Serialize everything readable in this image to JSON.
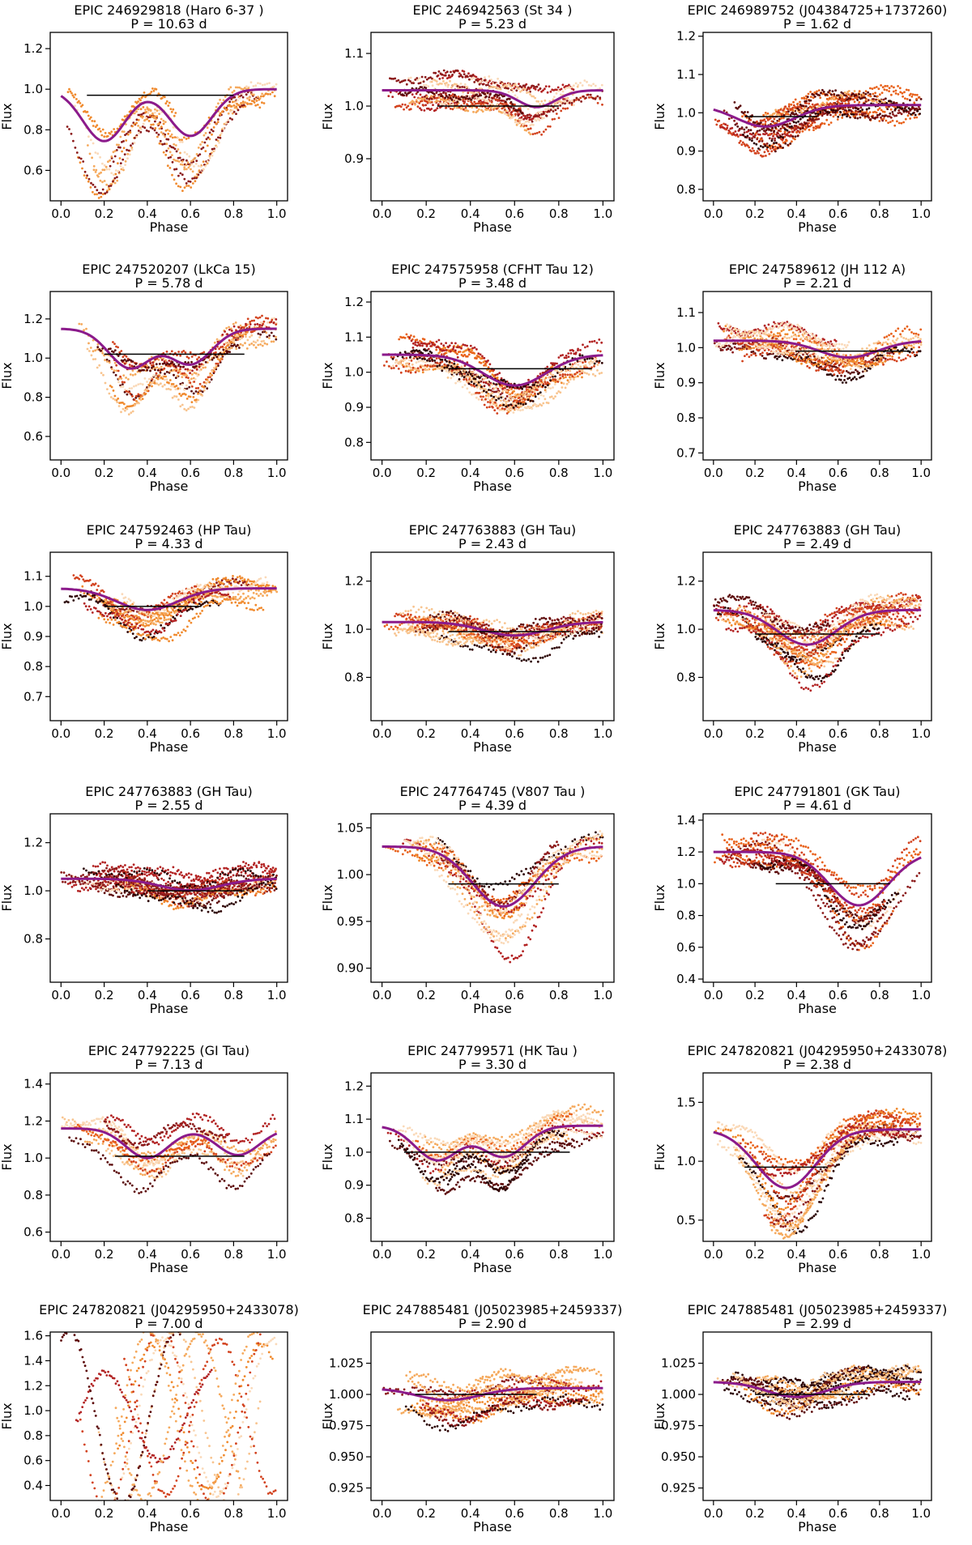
{
  "figure": {
    "name": "K2 light curves phase-folded grid"
  },
  "chart_data": [
    {
      "type": "scatter",
      "title": "EPIC 246929818 (Haro 6-37 )",
      "subtitle": "P = 10.63 d",
      "xlabel": "Phase",
      "ylabel": "Flux",
      "xlim": [
        -0.05,
        1.05
      ],
      "ylim": [
        0.45,
        1.28
      ],
      "xticks": [
        "0.0",
        "0.2",
        "0.4",
        "0.6",
        "0.8",
        "1.0"
      ],
      "yticks": [
        {
          "v": 0.6,
          "t": "0.6"
        },
        {
          "v": 0.8,
          "t": "0.8"
        },
        {
          "v": 1.0,
          "t": "1.0"
        },
        {
          "v": 1.2,
          "t": "1.2"
        }
      ],
      "median": 1.0,
      "shape": "bimodal",
      "amp": 0.32,
      "minima": [
        0.2,
        0.6
      ],
      "nseg": 8,
      "hline": {
        "y": 0.97,
        "x": [
          0.12,
          0.8
        ]
      },
      "seed": 11
    },
    {
      "type": "scatter",
      "title": "EPIC 246942563 (St 34 )",
      "subtitle": "P = 5.23 d",
      "xlabel": "Phase",
      "ylabel": "Flux",
      "xlim": [
        -0.05,
        1.05
      ],
      "ylim": [
        0.82,
        1.14
      ],
      "xticks": [
        "0.0",
        "0.2",
        "0.4",
        "0.6",
        "0.8",
        "1.0"
      ],
      "yticks": [
        {
          "v": 0.9,
          "t": "0.9"
        },
        {
          "v": 1.0,
          "t": "1.0"
        },
        {
          "v": 1.1,
          "t": "1.1"
        }
      ],
      "median": 1.03,
      "shape": "flatdip",
      "amp": 0.04,
      "minima": [
        0.7
      ],
      "nseg": 12,
      "hline": {
        "y": 1.0,
        "x": [
          0.25,
          0.8
        ]
      },
      "seed": 12
    },
    {
      "type": "scatter",
      "title": "EPIC 246989752 (J04384725+1737260)",
      "subtitle": "P = 1.62 d",
      "xlabel": "Phase",
      "ylabel": "Flux",
      "xlim": [
        -0.05,
        1.05
      ],
      "ylim": [
        0.77,
        1.21
      ],
      "xticks": [
        "0.0",
        "0.2",
        "0.4",
        "0.6",
        "0.8",
        "1.0"
      ],
      "yticks": [
        {
          "v": 0.8,
          "t": "0.8"
        },
        {
          "v": 0.9,
          "t": "0.9"
        },
        {
          "v": 1.0,
          "t": "1.0"
        },
        {
          "v": 1.1,
          "t": "1.1"
        },
        {
          "v": 1.2,
          "t": "1.2"
        }
      ],
      "median": 1.02,
      "shape": "dip",
      "amp": 0.07,
      "minima": [
        0.25
      ],
      "nseg": 14,
      "hline": {
        "y": 0.99,
        "x": [
          0.15,
          0.5
        ]
      },
      "seed": 13
    },
    {
      "type": "scatter",
      "title": "EPIC 247520207 (LkCa 15)",
      "subtitle": "P = 5.78 d",
      "xlabel": "Phase",
      "ylabel": "Flux",
      "xlim": [
        -0.05,
        1.05
      ],
      "ylim": [
        0.48,
        1.34
      ],
      "xticks": [
        "0.0",
        "0.2",
        "0.4",
        "0.6",
        "0.8",
        "1.0"
      ],
      "yticks": [
        {
          "v": 0.6,
          "t": "0.6"
        },
        {
          "v": 0.8,
          "t": "0.8"
        },
        {
          "v": 1.0,
          "t": "1.0"
        },
        {
          "v": 1.2,
          "t": "1.2"
        }
      ],
      "median": 1.15,
      "shape": "bimodal",
      "amp": 0.25,
      "minima": [
        0.32,
        0.6
      ],
      "nseg": 10,
      "hline": {
        "y": 1.02,
        "x": [
          0.2,
          0.85
        ]
      },
      "seed": 21
    },
    {
      "type": "scatter",
      "title": "EPIC 247575958 (CFHT Tau 12)",
      "subtitle": "P = 3.48 d",
      "xlabel": "Phase",
      "ylabel": "Flux",
      "xlim": [
        -0.05,
        1.05
      ],
      "ylim": [
        0.75,
        1.23
      ],
      "xticks": [
        "0.0",
        "0.2",
        "0.4",
        "0.6",
        "0.8",
        "1.0"
      ],
      "yticks": [
        {
          "v": 0.8,
          "t": "0.8"
        },
        {
          "v": 0.9,
          "t": "0.9"
        },
        {
          "v": 1.0,
          "t": "1.0"
        },
        {
          "v": 1.1,
          "t": "1.1"
        },
        {
          "v": 1.2,
          "t": "1.2"
        }
      ],
      "median": 1.05,
      "shape": "dip",
      "amp": 0.11,
      "minima": [
        0.6
      ],
      "nseg": 14,
      "hline": {
        "y": 1.01,
        "x": [
          0.3,
          0.95
        ]
      },
      "seed": 22
    },
    {
      "type": "scatter",
      "title": "EPIC 247589612 (JH 112 A)",
      "subtitle": "P = 2.21 d",
      "xlabel": "Phase",
      "ylabel": "Flux",
      "xlim": [
        -0.05,
        1.05
      ],
      "ylim": [
        0.68,
        1.16
      ],
      "xticks": [
        "0.0",
        "0.2",
        "0.4",
        "0.6",
        "0.8",
        "1.0"
      ],
      "yticks": [
        {
          "v": 0.7,
          "t": "0.7"
        },
        {
          "v": 0.8,
          "t": "0.8"
        },
        {
          "v": 0.9,
          "t": "0.9"
        },
        {
          "v": 1.0,
          "t": "1.0"
        },
        {
          "v": 1.1,
          "t": "1.1"
        }
      ],
      "median": 1.02,
      "shape": "dip",
      "amp": 0.06,
      "minima": [
        0.65
      ],
      "nseg": 14,
      "hline": {
        "y": 0.99,
        "x": [
          0.4,
          0.95
        ]
      },
      "seed": 23
    },
    {
      "type": "scatter",
      "title": "EPIC 247592463 (HP Tau)",
      "subtitle": "P = 4.33 d",
      "xlabel": "Phase",
      "ylabel": "Flux",
      "xlim": [
        -0.05,
        1.05
      ],
      "ylim": [
        0.62,
        1.18
      ],
      "xticks": [
        "0.0",
        "0.2",
        "0.4",
        "0.6",
        "0.8",
        "1.0"
      ],
      "yticks": [
        {
          "v": 0.7,
          "t": "0.7"
        },
        {
          "v": 0.8,
          "t": "0.8"
        },
        {
          "v": 0.9,
          "t": "0.9"
        },
        {
          "v": 1.0,
          "t": "1.0"
        },
        {
          "v": 1.1,
          "t": "1.1"
        }
      ],
      "median": 1.06,
      "shape": "dip",
      "amp": 0.09,
      "minima": [
        0.4
      ],
      "nseg": 11,
      "hline": {
        "y": 1.0,
        "x": [
          0.2,
          0.65
        ]
      },
      "seed": 31
    },
    {
      "type": "scatter",
      "title": "EPIC 247763883 (GH Tau)",
      "subtitle": "P = 2.43 d",
      "xlabel": "Phase",
      "ylabel": "Flux",
      "xlim": [
        -0.05,
        1.05
      ],
      "ylim": [
        0.62,
        1.32
      ],
      "xticks": [
        "0.0",
        "0.2",
        "0.4",
        "0.6",
        "0.8",
        "1.0"
      ],
      "yticks": [
        {
          "v": 0.8,
          "t": "0.8"
        },
        {
          "v": 1.0,
          "t": "1.0"
        },
        {
          "v": 1.2,
          "t": "1.2"
        }
      ],
      "median": 1.03,
      "shape": "dip",
      "amp": 0.07,
      "minima": [
        0.6
      ],
      "nseg": 18,
      "hline": {
        "y": 0.99,
        "x": [
          0.3,
          0.85
        ]
      },
      "seed": 32
    },
    {
      "type": "scatter",
      "title": "EPIC 247763883 (GH Tau)",
      "subtitle": "P = 2.49 d",
      "xlabel": "Phase",
      "ylabel": "Flux",
      "xlim": [
        -0.05,
        1.05
      ],
      "ylim": [
        0.62,
        1.32
      ],
      "xticks": [
        "0.0",
        "0.2",
        "0.4",
        "0.6",
        "0.8",
        "1.0"
      ],
      "yticks": [
        {
          "v": 0.8,
          "t": "0.8"
        },
        {
          "v": 1.0,
          "t": "1.0"
        },
        {
          "v": 1.2,
          "t": "1.2"
        }
      ],
      "median": 1.08,
      "shape": "dip",
      "amp": 0.18,
      "minima": [
        0.45
      ],
      "nseg": 18,
      "hline": {
        "y": 0.98,
        "x": [
          0.2,
          0.8
        ]
      },
      "seed": 33
    },
    {
      "type": "scatter",
      "title": "EPIC 247763883 (GH Tau)",
      "subtitle": "P = 2.55 d",
      "xlabel": "Phase",
      "ylabel": "Flux",
      "xlim": [
        -0.05,
        1.05
      ],
      "ylim": [
        0.62,
        1.32
      ],
      "xticks": [
        "0.0",
        "0.2",
        "0.4",
        "0.6",
        "0.8",
        "1.0"
      ],
      "yticks": [
        {
          "v": 0.8,
          "t": "0.8"
        },
        {
          "v": 1.0,
          "t": "1.0"
        },
        {
          "v": 1.2,
          "t": "1.2"
        }
      ],
      "median": 1.05,
      "shape": "dip",
      "amp": 0.06,
      "minima": [
        0.6
      ],
      "nseg": 18,
      "hline": {
        "y": 1.0,
        "x": [
          0.4,
          0.85
        ]
      },
      "seed": 41
    },
    {
      "type": "scatter",
      "title": "EPIC 247764745 (V807 Tau )",
      "subtitle": "P = 4.39 d",
      "xlabel": "Phase",
      "ylabel": "Flux",
      "xlim": [
        -0.05,
        1.05
      ],
      "ylim": [
        0.885,
        1.065
      ],
      "xticks": [
        "0.0",
        "0.2",
        "0.4",
        "0.6",
        "0.8",
        "1.0"
      ],
      "yticks": [
        {
          "v": 0.9,
          "t": "0.90"
        },
        {
          "v": 0.95,
          "t": "0.95"
        },
        {
          "v": 1.0,
          "t": "1.00"
        },
        {
          "v": 1.05,
          "t": "1.05"
        }
      ],
      "median": 1.03,
      "shape": "dip",
      "amp": 0.08,
      "minima": [
        0.55
      ],
      "nseg": 12,
      "hline": {
        "y": 0.99,
        "x": [
          0.3,
          0.8
        ]
      },
      "seed": 42
    },
    {
      "type": "scatter",
      "title": "EPIC 247791801 (GK Tau)",
      "subtitle": "P = 4.61 d",
      "xlabel": "Phase",
      "ylabel": "Flux",
      "xlim": [
        -0.05,
        1.05
      ],
      "ylim": [
        0.38,
        1.44
      ],
      "xticks": [
        "0.0",
        "0.2",
        "0.4",
        "0.6",
        "0.8",
        "1.0"
      ],
      "yticks": [
        {
          "v": 0.4,
          "t": "0.4"
        },
        {
          "v": 0.6,
          "t": "0.6"
        },
        {
          "v": 0.8,
          "t": "0.8"
        },
        {
          "v": 1.0,
          "t": "1.0"
        },
        {
          "v": 1.2,
          "t": "1.2"
        },
        {
          "v": 1.4,
          "t": "1.4"
        }
      ],
      "median": 1.2,
      "shape": "dip",
      "amp": 0.42,
      "minima": [
        0.7
      ],
      "nseg": 12,
      "hline": {
        "y": 1.0,
        "x": [
          0.3,
          0.85
        ]
      },
      "seed": 43
    },
    {
      "type": "scatter",
      "title": "EPIC 247792225 (GI Tau)",
      "subtitle": "P = 7.13 d",
      "xlabel": "Phase",
      "ylabel": "Flux",
      "xlim": [
        -0.05,
        1.05
      ],
      "ylim": [
        0.55,
        1.46
      ],
      "xticks": [
        "0.0",
        "0.2",
        "0.4",
        "0.6",
        "0.8",
        "1.0"
      ],
      "yticks": [
        {
          "v": 0.6,
          "t": "0.6"
        },
        {
          "v": 0.8,
          "t": "0.8"
        },
        {
          "v": 1.0,
          "t": "1.0"
        },
        {
          "v": 1.2,
          "t": "1.2"
        },
        {
          "v": 1.4,
          "t": "1.4"
        }
      ],
      "median": 1.16,
      "shape": "bimodal",
      "amp": 0.2,
      "minima": [
        0.4,
        0.82
      ],
      "nseg": 10,
      "hline": {
        "y": 1.01,
        "x": [
          0.25,
          0.85
        ]
      },
      "seed": 51
    },
    {
      "type": "scatter",
      "title": "EPIC 247799571 (HK Tau )",
      "subtitle": "P = 3.30 d",
      "xlabel": "Phase",
      "ylabel": "Flux",
      "xlim": [
        -0.05,
        1.05
      ],
      "ylim": [
        0.73,
        1.24
      ],
      "xticks": [
        "0.0",
        "0.2",
        "0.4",
        "0.6",
        "0.8",
        "1.0"
      ],
      "yticks": [
        {
          "v": 0.8,
          "t": "0.8"
        },
        {
          "v": 0.9,
          "t": "0.9"
        },
        {
          "v": 1.0,
          "t": "1.0"
        },
        {
          "v": 1.1,
          "t": "1.1"
        },
        {
          "v": 1.2,
          "t": "1.2"
        }
      ],
      "median": 1.08,
      "shape": "bimodal",
      "amp": 0.13,
      "minima": [
        0.25,
        0.55
      ],
      "nseg": 14,
      "hline": {
        "y": 1.0,
        "x": [
          0.1,
          0.85
        ]
      },
      "seed": 52
    },
    {
      "type": "scatter",
      "title": "EPIC 247820821 (J04295950+2433078)",
      "subtitle": "P = 2.38 d",
      "xlabel": "Phase",
      "ylabel": "Flux",
      "xlim": [
        -0.05,
        1.05
      ],
      "ylim": [
        0.32,
        1.75
      ],
      "xticks": [
        "0.0",
        "0.2",
        "0.4",
        "0.6",
        "0.8",
        "1.0"
      ],
      "yticks": [
        {
          "v": 0.5,
          "t": "0.5"
        },
        {
          "v": 1.0,
          "t": "1.0"
        },
        {
          "v": 1.5,
          "t": "1.5"
        }
      ],
      "median": 1.27,
      "shape": "dip",
      "amp": 0.62,
      "minima": [
        0.35
      ],
      "nseg": 16,
      "hline": {
        "y": 0.95,
        "x": [
          0.15,
          0.55
        ]
      },
      "seed": 53
    },
    {
      "type": "scatter",
      "title": "EPIC 247820821 (J04295950+2433078)",
      "subtitle": "P = 7.00 d",
      "xlabel": "Phase",
      "ylabel": "Flux",
      "xlim": [
        -0.05,
        1.05
      ],
      "ylim": [
        0.28,
        1.63
      ],
      "xticks": [
        "0.0",
        "0.2",
        "0.4",
        "0.6",
        "0.8",
        "1.0"
      ],
      "yticks": [
        {
          "v": 0.4,
          "t": "0.4"
        },
        {
          "v": 0.6,
          "t": "0.6"
        },
        {
          "v": 0.8,
          "t": "0.8"
        },
        {
          "v": 1.0,
          "t": "1.0"
        },
        {
          "v": 1.2,
          "t": "1.2"
        },
        {
          "v": 1.4,
          "t": "1.4"
        },
        {
          "v": 1.6,
          "t": "1.6"
        }
      ],
      "median": 0.95,
      "shape": "wave",
      "amp": 0.5,
      "minima": [
        0.35
      ],
      "nseg": 9,
      "hline": null,
      "seed": 61
    },
    {
      "type": "scatter",
      "title": "EPIC 247885481 (J05023985+2459337)",
      "subtitle": "P = 2.90 d",
      "xlabel": "Phase",
      "ylabel": "Flux",
      "xlim": [
        -0.05,
        1.05
      ],
      "ylim": [
        0.915,
        1.05
      ],
      "xticks": [
        "0.0",
        "0.2",
        "0.4",
        "0.6",
        "0.8",
        "1.0"
      ],
      "yticks": [
        {
          "v": 0.925,
          "t": "0.925"
        },
        {
          "v": 0.95,
          "t": "0.950"
        },
        {
          "v": 0.975,
          "t": "0.975"
        },
        {
          "v": 1.0,
          "t": "1.000"
        },
        {
          "v": 1.025,
          "t": "1.025"
        }
      ],
      "median": 1.005,
      "shape": "dip",
      "amp": 0.012,
      "minima": [
        0.3
      ],
      "nseg": 14,
      "hline": {
        "y": 1.0,
        "x": [
          0.15,
          0.7
        ]
      },
      "seed": 62
    },
    {
      "type": "scatter",
      "title": "EPIC 247885481 (J05023985+2459337)",
      "subtitle": "P = 2.99 d",
      "xlabel": "Phase",
      "ylabel": "Flux",
      "xlim": [
        -0.05,
        1.05
      ],
      "ylim": [
        0.915,
        1.05
      ],
      "xticks": [
        "0.0",
        "0.2",
        "0.4",
        "0.6",
        "0.8",
        "1.0"
      ],
      "yticks": [
        {
          "v": 0.925,
          "t": "0.925"
        },
        {
          "v": 0.95,
          "t": "0.950"
        },
        {
          "v": 0.975,
          "t": "0.975"
        },
        {
          "v": 1.0,
          "t": "1.000"
        },
        {
          "v": 1.025,
          "t": "1.025"
        }
      ],
      "median": 1.01,
      "shape": "dip",
      "amp": 0.015,
      "minima": [
        0.4
      ],
      "nseg": 14,
      "hline": {
        "y": 1.0,
        "x": [
          0.2,
          0.75
        ]
      },
      "seed": 63
    }
  ],
  "palette": [
    "#2b0000",
    "#5c0a0a",
    "#8b1a1a",
    "#b22222",
    "#d2421e",
    "#e8611a",
    "#f08a2e",
    "#f5a95c",
    "#f8c48f",
    "#fad9b8"
  ],
  "median_color": "#8b1a8b",
  "hline_color": "#000000"
}
